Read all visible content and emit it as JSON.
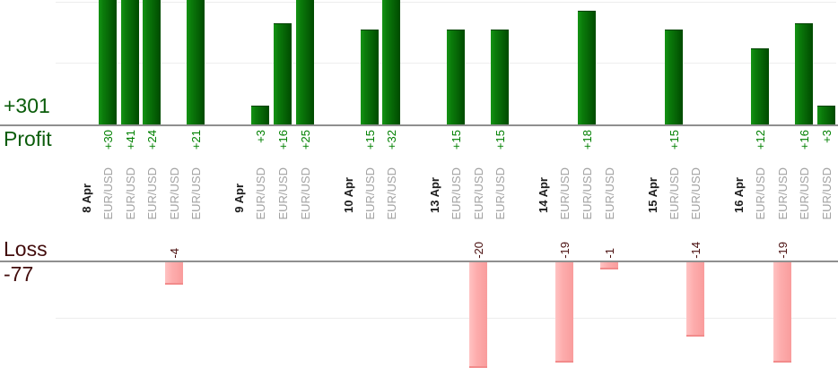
{
  "chart_data": {
    "type": "bar",
    "orientation": "vertical-grouped-by-date",
    "grid": true,
    "legend": "none",
    "series": [
      {
        "name": "Profit",
        "total": 301,
        "total_label": "+301"
      },
      {
        "name": "Loss",
        "total": -77,
        "total_label": "-77"
      }
    ],
    "groups": [
      {
        "date": "8 Apr",
        "trades": [
          {
            "symbol": "EUR/USD",
            "value": 30,
            "label": "+30"
          },
          {
            "symbol": "EUR/USD",
            "value": 41,
            "label": "+41"
          },
          {
            "symbol": "EUR/USD",
            "value": 24,
            "label": "+24"
          },
          {
            "symbol": "EUR/USD",
            "value": -4,
            "label": "-4"
          },
          {
            "symbol": "EUR/USD",
            "value": 21,
            "label": "+21"
          }
        ]
      },
      {
        "date": "9 Apr",
        "trades": [
          {
            "symbol": "EUR/USD",
            "value": 3,
            "label": "+3"
          },
          {
            "symbol": "EUR/USD",
            "value": 16,
            "label": "+16"
          },
          {
            "symbol": "EUR/USD",
            "value": 25,
            "label": "+25"
          }
        ]
      },
      {
        "date": "10 Apr",
        "trades": [
          {
            "symbol": "EUR/USD",
            "value": 15,
            "label": "+15"
          },
          {
            "symbol": "EUR/USD",
            "value": 32,
            "label": "+32"
          }
        ]
      },
      {
        "date": "13 Apr",
        "trades": [
          {
            "symbol": "EUR/USD",
            "value": 15,
            "label": "+15"
          },
          {
            "symbol": "EUR/USD",
            "value": -20,
            "label": "-20"
          },
          {
            "symbol": "EUR/USD",
            "value": 15,
            "label": "+15"
          }
        ]
      },
      {
        "date": "14 Apr",
        "trades": [
          {
            "symbol": "EUR/USD",
            "value": -19,
            "label": "-19"
          },
          {
            "symbol": "EUR/USD",
            "value": 18,
            "label": "+18"
          },
          {
            "symbol": "EUR/USD",
            "value": -1,
            "label": "-1"
          }
        ]
      },
      {
        "date": "15 Apr",
        "trades": [
          {
            "symbol": "EUR/USD",
            "value": 15,
            "label": "+15"
          },
          {
            "symbol": "EUR/USD",
            "value": -14,
            "label": "-14"
          }
        ]
      },
      {
        "date": "16 Apr",
        "trades": [
          {
            "symbol": "EUR/USD",
            "value": 12,
            "label": "+12"
          },
          {
            "symbol": "EUR/USD",
            "value": -19,
            "label": "-19"
          },
          {
            "symbol": "EUR/USD",
            "value": 16,
            "label": "+16"
          },
          {
            "symbol": "EUR/USD",
            "value": 3,
            "label": "+3"
          }
        ]
      }
    ],
    "colors": {
      "profit_bar_light": "#149314",
      "profit_bar_dark": "#004a00",
      "loss_bar_light": "#ffc3c3",
      "loss_bar_dark": "#f99c9c",
      "profit_text": "#0a5c0a",
      "profit_value_text": "#008000",
      "loss_text": "#420c0c",
      "loss_value_text": "#4a0f0f",
      "date_text": "#1c1c1c",
      "symbol_text": "#a2a2a2",
      "axis_line": "#8f8f8f",
      "gridline": "#ededed"
    }
  }
}
